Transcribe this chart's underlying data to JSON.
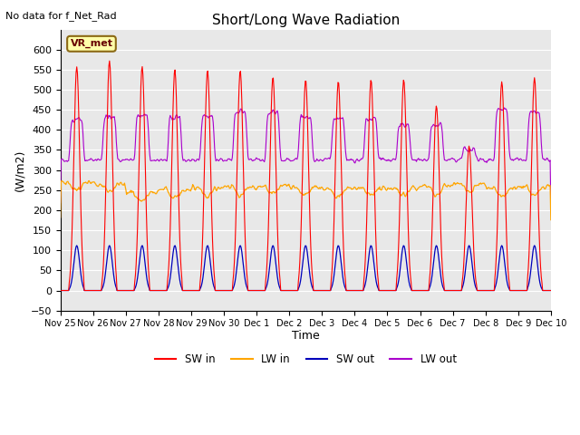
{
  "title": "Short/Long Wave Radiation",
  "ylabel": "(W/m2)",
  "xlabel": "Time",
  "annotation": "No data for f_Net_Rad",
  "legend_label": "VR_met",
  "ylim": [
    -50,
    650
  ],
  "yticks": [
    -50,
    0,
    50,
    100,
    150,
    200,
    250,
    300,
    350,
    400,
    450,
    500,
    550,
    600
  ],
  "bg_color": "#e8e8e8",
  "line_colors": {
    "sw_in": "#ff0000",
    "lw_in": "#ffa500",
    "sw_out": "#0000bb",
    "lw_out": "#aa00cc"
  },
  "n_days": 15,
  "dt_hours": 0.5,
  "sw_peaks": [
    557,
    572,
    558,
    550,
    548,
    548,
    532,
    525,
    521,
    525,
    525,
    460,
    360,
    520,
    530
  ],
  "lw_out_peaks": [
    425,
    430,
    435,
    430,
    435,
    445,
    445,
    430,
    425,
    425,
    410,
    410,
    350,
    450,
    440
  ],
  "lw_in_base": [
    270,
    265,
    245,
    250,
    255,
    258,
    260,
    257,
    253,
    255,
    255,
    260,
    265,
    255,
    258
  ],
  "tick_labels": [
    "Nov 25",
    "Nov 26",
    "Nov 27",
    "Nov 28",
    "Nov 29",
    "Nov 30",
    "Dec 1",
    "Dec 2",
    "Dec 3",
    "Dec 4",
    "Dec 5",
    "Dec 6",
    "Dec 7",
    "Dec 8",
    "Dec 9",
    "Dec 10"
  ]
}
